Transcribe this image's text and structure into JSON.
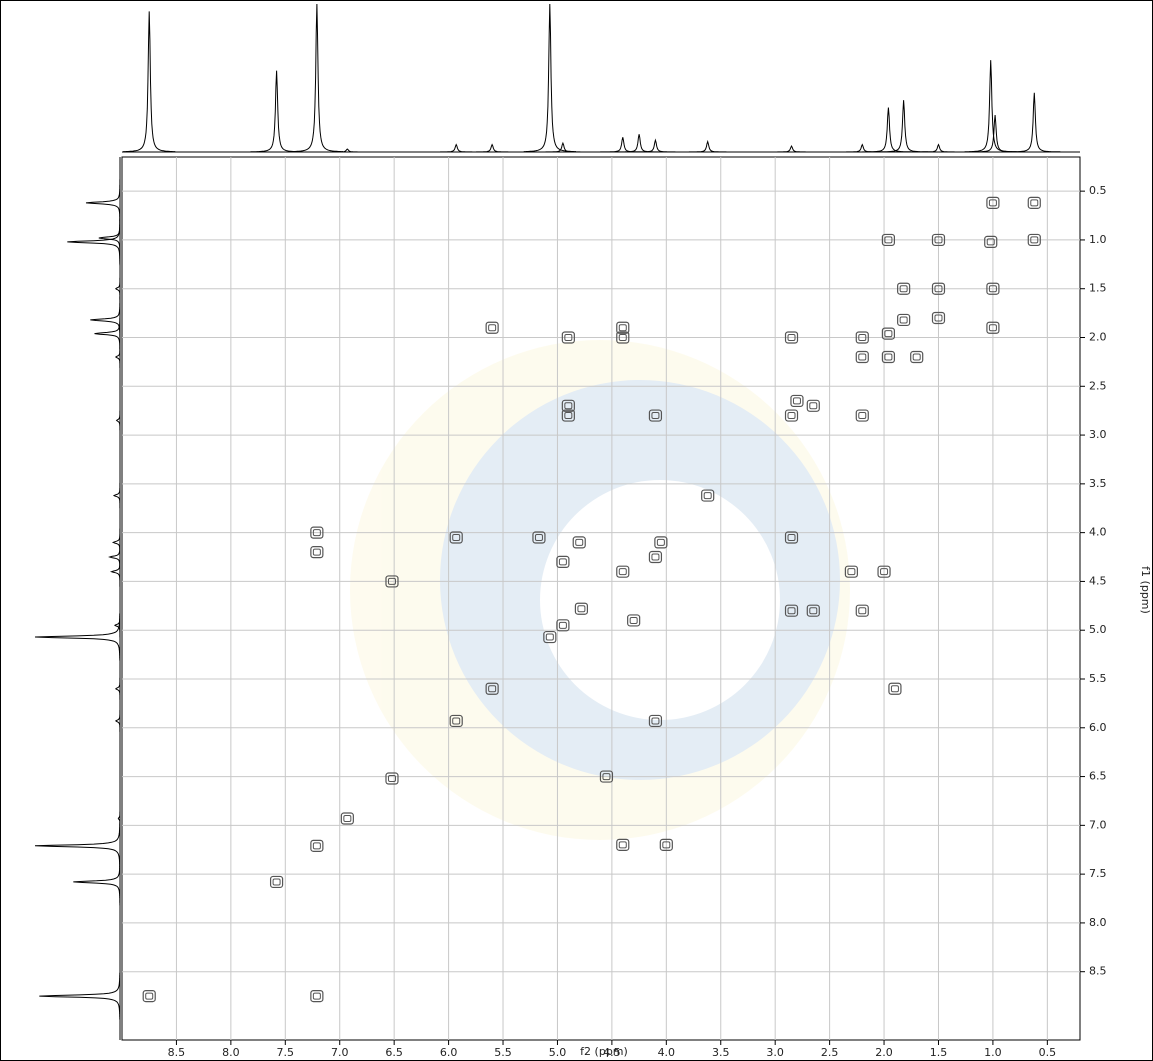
{
  "chart_data": {
    "type": "contour",
    "x_label": "f2 (ppm)",
    "y_label": "f1 (ppm)",
    "xlim": [
      9.0,
      0.2
    ],
    "ylim": [
      0.15,
      9.2
    ],
    "xticks": [
      8.5,
      {
        "value": 8,
        "label": "8.0"
      },
      7.5,
      {
        "value": 7,
        "label": "7.0"
      },
      6.5,
      {
        "value": 6,
        "label": "6.0"
      },
      5.5,
      {
        "value": 5,
        "label": "5.0"
      },
      4.5,
      {
        "value": 4,
        "label": "4.0"
      },
      3.5,
      {
        "value": 3,
        "label": "3.0"
      },
      2.5,
      {
        "value": 2,
        "label": "2.0"
      },
      1.5,
      {
        "value": 1,
        "label": "1.0"
      },
      0.5
    ],
    "yticks": [
      0.5,
      {
        "value": 1,
        "label": "1.0"
      },
      1.5,
      {
        "value": 2,
        "label": "2.0"
      },
      2.5,
      {
        "value": 3,
        "label": "3.0"
      },
      3.5,
      {
        "value": 4,
        "label": "4.0"
      },
      4.5,
      {
        "value": 5,
        "label": "5.0"
      },
      5.5,
      {
        "value": 6,
        "label": "6.0"
      },
      6.5,
      {
        "value": 7,
        "label": "7.0"
      },
      7.5,
      {
        "value": 8,
        "label": "8.0"
      },
      8.5
    ],
    "grid": true,
    "grid_color": "#c8c8c8",
    "contour_color": "#555555",
    "projection_color": "#000000",
    "peaks": {
      "x": [
        8.75,
        7.58,
        7.21,
        6.93,
        6.52,
        5.93,
        5.6,
        5.07,
        4.95,
        4.78,
        4.4,
        4.1,
        4.05,
        3.62,
        2.85,
        2.8,
        2.2,
        1.96,
        1.82,
        1.5,
        1.02,
        0.62,
        7.21,
        7.21,
        4.0,
        4.4,
        7.21,
        5.93,
        4.1,
        6.52,
        4.55,
        5.6,
        1.9,
        4.9,
        4.4,
        4.4,
        2.85,
        4.9,
        4.9,
        4.1,
        2.2,
        2.65,
        2.85,
        2.65,
        2.2,
        2.3,
        2.0,
        2.85,
        1.96,
        1.5,
        1.0,
        1.0,
        1.82,
        1.5,
        1.7,
        2.2,
        1.96,
        0.62,
        1.0,
        4.3,
        4.95,
        4.8,
        5.17
      ],
      "y": [
        8.75,
        7.58,
        7.21,
        6.93,
        6.52,
        5.93,
        5.6,
        5.07,
        4.95,
        4.78,
        4.4,
        4.25,
        4.1,
        3.62,
        2.8,
        2.65,
        2.2,
        1.96,
        1.82,
        1.5,
        1.02,
        0.62,
        4.0,
        4.2,
        7.2,
        7.2,
        8.75,
        4.05,
        5.93,
        4.5,
        6.5,
        1.9,
        5.6,
        2.0,
        2.0,
        1.9,
        2.0,
        2.7,
        2.8,
        2.8,
        2.8,
        2.7,
        4.8,
        4.8,
        4.8,
        4.4,
        4.4,
        4.05,
        1.0,
        1.0,
        1.5,
        1.9,
        1.5,
        1.8,
        2.2,
        2.0,
        2.2,
        1.0,
        0.62,
        4.9,
        4.3,
        4.1,
        4.05
      ]
    },
    "projection": {
      "x": [
        8.75,
        7.58,
        7.21,
        6.93,
        5.93,
        5.6,
        5.07,
        4.95,
        4.4,
        4.25,
        4.1,
        3.62,
        2.85,
        2.2,
        1.96,
        1.82,
        1.5,
        1.02,
        0.98,
        0.62
      ],
      "values": [
        0.95,
        0.55,
        1.0,
        0.02,
        0.05,
        0.05,
        1.0,
        0.06,
        0.1,
        0.12,
        0.08,
        0.07,
        0.04,
        0.05,
        0.3,
        0.35,
        0.05,
        0.62,
        0.25,
        0.4
      ]
    }
  }
}
